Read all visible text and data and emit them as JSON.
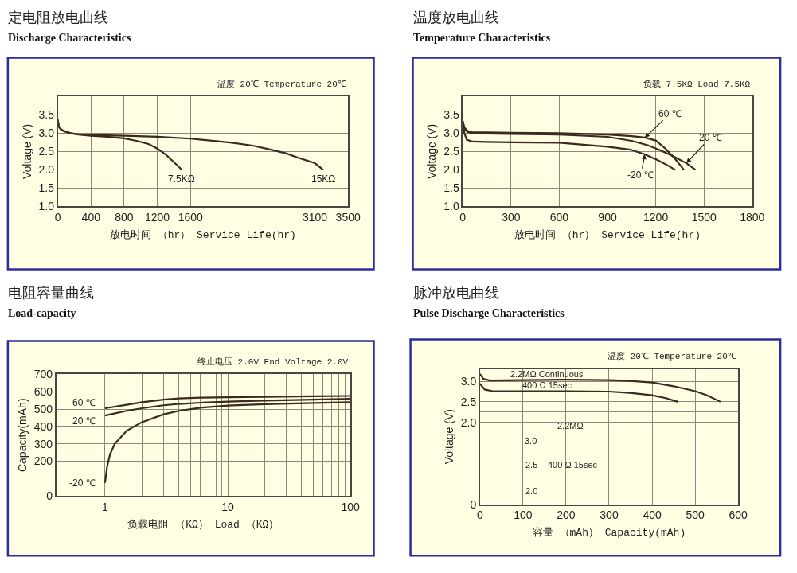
{
  "chart_data": [
    {
      "type": "line",
      "title": "定电阻放电曲线",
      "subtitle": "Discharge Characteristics",
      "xlabel": "放电时间 （hr） Service Life(hr)",
      "ylabel": "Voltage (V)",
      "annotations": [
        "温度 20℃ Temperature 20℃"
      ],
      "xlim": [
        0,
        3500
      ],
      "xticks": [
        0,
        400,
        800,
        1200,
        1600,
        3100,
        3500
      ],
      "ylim": [
        1,
        4
      ],
      "yticks": [
        {
          "value": 1,
          "label": "1.0"
        },
        1.5,
        {
          "value": 2,
          "label": "2.0"
        },
        2.5,
        {
          "value": 3,
          "label": "3.0"
        },
        3.5
      ],
      "grid": true,
      "series": [
        {
          "name": "7.5KΩ",
          "color": "#3b2a1e",
          "x": [
            0,
            12,
            40,
            75,
            150,
            250,
            400,
            600,
            800,
            950,
            1100,
            1200,
            1300,
            1400,
            1495
          ],
          "values": [
            3.37,
            3.18,
            3.1,
            3.06,
            3.0,
            2.96,
            2.93,
            2.9,
            2.86,
            2.79,
            2.7,
            2.58,
            2.42,
            2.21,
            2.0
          ]
        },
        {
          "name": "15KΩ",
          "color": "#3b2a1e",
          "x": [
            0,
            12,
            40,
            75,
            150,
            250,
            400,
            800,
            1200,
            1600,
            2100,
            2350,
            2550,
            2750,
            2900,
            3100,
            3200
          ],
          "values": [
            3.37,
            3.18,
            3.1,
            3.06,
            3.0,
            2.97,
            2.95,
            2.93,
            2.9,
            2.85,
            2.74,
            2.66,
            2.56,
            2.45,
            2.33,
            2.18,
            2.0
          ]
        }
      ]
    },
    {
      "type": "line",
      "title": "温度放电曲线",
      "subtitle": "Temperature Characteristics",
      "xlabel": "放电时间 （hr） Service Life(hr)",
      "ylabel": "Voltage (V)",
      "annotations": [
        "负载 7.5KΩ Load 7.5KΩ"
      ],
      "xlim": [
        0,
        1800
      ],
      "xticks": [
        0,
        300,
        600,
        900,
        1200,
        1500,
        1800
      ],
      "ylim": [
        1,
        4
      ],
      "yticks": [
        {
          "value": 1,
          "label": "1.0"
        },
        1.5,
        {
          "value": 2,
          "label": "2.0"
        },
        2.5,
        {
          "value": 3,
          "label": "3.0"
        },
        3.5
      ],
      "grid": true,
      "series": [
        {
          "name": "60 ℃",
          "color": "#3b2a1e",
          "x": [
            0,
            10,
            30,
            60,
            150,
            300,
            600,
            900,
            1050,
            1132,
            1200,
            1260,
            1320,
            1375
          ],
          "values": [
            3.33,
            3.15,
            3.06,
            3.03,
            3.02,
            3.01,
            3.0,
            2.96,
            2.92,
            2.88,
            2.8,
            2.58,
            2.3,
            2.0
          ]
        },
        {
          "name": "20 ℃",
          "color": "#3b2a1e",
          "x": [
            0,
            10,
            30,
            60,
            150,
            300,
            600,
            900,
            1050,
            1150,
            1230,
            1300,
            1391,
            1447
          ],
          "values": [
            3.33,
            3.12,
            3.03,
            3.0,
            2.99,
            2.98,
            2.96,
            2.9,
            2.79,
            2.67,
            2.53,
            2.39,
            2.18,
            2.0
          ]
        },
        {
          "name": "-20 ℃",
          "color": "#3b2a1e",
          "x": [
            0,
            10,
            25,
            60,
            150,
            300,
            600,
            900,
            1043,
            1132,
            1205,
            1270,
            1321
          ],
          "values": [
            3.27,
            3.0,
            2.82,
            2.77,
            2.76,
            2.75,
            2.74,
            2.63,
            2.55,
            2.42,
            2.28,
            2.13,
            2.0
          ]
        }
      ]
    },
    {
      "type": "line",
      "title": "电阻容量曲线",
      "subtitle": "Load-capacity",
      "xlabel": "负载电阻 （KΩ） Load （KΩ）",
      "ylabel": "Capacity(mAh)",
      "annotations": [
        "终止电压 2.0V End Voltage 2.0V"
      ],
      "log": "x",
      "xlim": [
        0.4,
        100
      ],
      "xticks": [
        1,
        {
          "value": 2,
          "label": null
        },
        {
          "value": 3,
          "label": null
        },
        {
          "value": 4,
          "label": null
        },
        {
          "value": 5,
          "label": null
        },
        {
          "value": 6,
          "label": null
        },
        {
          "value": 7,
          "label": null
        },
        {
          "value": 8,
          "label": null
        },
        {
          "value": 9,
          "label": null
        },
        10,
        {
          "value": 20,
          "label": null
        },
        {
          "value": 30,
          "label": null
        },
        {
          "value": 40,
          "label": null
        },
        {
          "value": 50,
          "label": null
        },
        {
          "value": 60,
          "label": null
        },
        {
          "value": 70,
          "label": null
        },
        {
          "value": 80,
          "label": null
        },
        {
          "value": 90,
          "label": null
        },
        100
      ],
      "ylim": [
        0,
        700
      ],
      "yticks": [
        0,
        200,
        300,
        400,
        500,
        600,
        700
      ],
      "grid": true,
      "series": [
        {
          "name": "60 ℃",
          "color": "#3b2a1e",
          "x": [
            1,
            1.5,
            2,
            3,
            4,
            6,
            10,
            20,
            50,
            100
          ],
          "values": [
            505,
            525,
            540,
            555,
            562,
            566,
            569,
            571,
            574,
            576
          ]
        },
        {
          "name": "20 ℃",
          "color": "#3b2a1e",
          "x": [
            1,
            1.5,
            2,
            3,
            4,
            6,
            10,
            20,
            50,
            100
          ],
          "values": [
            463,
            490,
            505,
            522,
            530,
            537,
            543,
            549,
            555,
            560
          ]
        },
        {
          "name": "-20 ℃",
          "color": "#3b2a1e",
          "x": [
            1,
            1.04,
            1.1,
            1.2,
            1.5,
            2,
            3,
            4,
            6,
            10,
            20,
            50,
            100
          ],
          "values": [
            75,
            170,
            240,
            300,
            375,
            425,
            470,
            490,
            508,
            520,
            528,
            535,
            540
          ]
        }
      ]
    },
    {
      "type": "line",
      "title": "脉冲放电曲线",
      "subtitle": "Pulse Discharge Characteristics",
      "xlabel": "容量 （mAh） Capacity(mAh)",
      "ylabel": "Voltage (V)",
      "annotations": [
        "温度 20℃ Temperature 20℃",
        "2.2MΩ",
        "3.0",
        "2.5",
        "2.0",
        "400 Ω 15sec"
      ],
      "xlim": [
        0,
        600
      ],
      "xticks": [
        0,
        100,
        200,
        300,
        400,
        500,
        600
      ],
      "ylim": [
        0,
        3.3
      ],
      "yticks": [
        0,
        {
          "value": 2,
          "label": "2.0"
        },
        {
          "value": 2.25,
          "label": null
        },
        2.5,
        {
          "value": 2.75,
          "label": null
        },
        {
          "value": 3,
          "label": "3.0"
        }
      ],
      "grid": true,
      "series": [
        {
          "name": "2.2MΩ Continuous",
          "color": "#3b2a1e",
          "x": [
            0,
            8,
            23,
            100,
            200,
            300,
            348,
            400,
            450,
            500,
            528,
            559
          ],
          "values": [
            3.18,
            3.06,
            3.02,
            3.03,
            3.04,
            3.03,
            3.01,
            2.97,
            2.88,
            2.76,
            2.66,
            2.5
          ]
        },
        {
          "name": "400 Ω 15sec",
          "color": "#3b2a1e",
          "x": [
            0,
            11,
            29,
            100,
            200,
            300,
            348,
            400,
            432,
            460
          ],
          "values": [
            2.94,
            2.8,
            2.76,
            2.76,
            2.76,
            2.75,
            2.72,
            2.66,
            2.59,
            2.5
          ]
        }
      ]
    }
  ]
}
